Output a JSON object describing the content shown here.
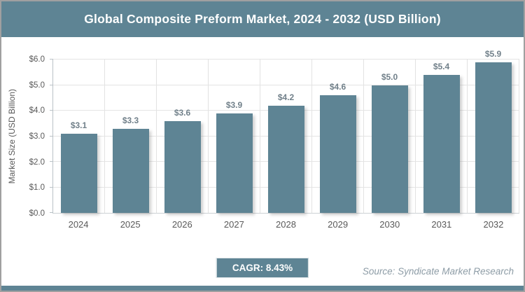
{
  "header": {
    "title": "Global Composite Preform Market, 2024 - 2032 (USD Billion)"
  },
  "chart_data": {
    "type": "bar",
    "title": "Global Composite Preform Market, 2024 - 2032 (USD Billion)",
    "categories": [
      "2024",
      "2025",
      "2026",
      "2027",
      "2028",
      "2029",
      "2030",
      "2031",
      "2032"
    ],
    "values": [
      3.1,
      3.3,
      3.6,
      3.9,
      4.2,
      4.6,
      5.0,
      5.4,
      5.9
    ],
    "bar_labels": [
      "$3.1",
      "$3.3",
      "$3.6",
      "$3.9",
      "$4.2",
      "$4.6",
      "$5.0",
      "$5.4",
      "$5.9"
    ],
    "xlabel": "",
    "ylabel": "Market Size (USD Billion)",
    "ylim": [
      0,
      6
    ],
    "ytick_step": 1,
    "ytick_labels": [
      "$0.0",
      "$1.0",
      "$2.0",
      "$3.0",
      "$4.0",
      "$5.0",
      "$6.0"
    ],
    "grid": true,
    "legend": false
  },
  "footer": {
    "cagr_label": "CAGR: 8.43%",
    "source": "Source: Syndicate Market Research"
  },
  "colors": {
    "accent": "#5e8494",
    "bar": "#5e8494",
    "grid": "#e4e4e4",
    "axis": "#b9c1c6",
    "tick_text": "#595959",
    "label_gray": "#71808a",
    "source_gray": "#8d9ca6",
    "frame": "#a0a0a0"
  }
}
